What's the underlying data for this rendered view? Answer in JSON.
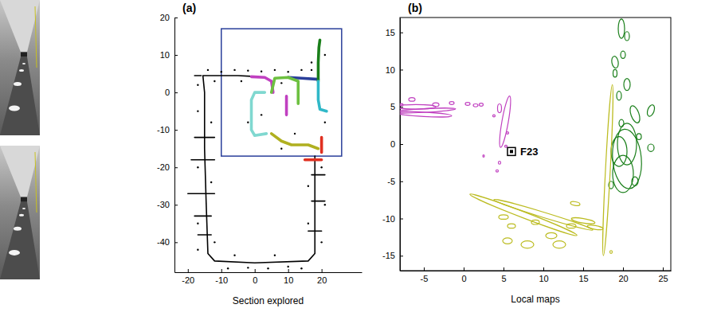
{
  "chart_data": [
    {
      "type": "line",
      "title": "(a)",
      "x_label": "Section explored",
      "xlim": [
        -24,
        32
      ],
      "xticks": [
        -20,
        -10,
        0,
        10,
        20
      ],
      "ylim": [
        -48,
        20
      ],
      "yticks": [
        -40,
        -30,
        -20,
        -10,
        0,
        10,
        20
      ],
      "region": {
        "x": [
          -10,
          26
        ],
        "y": [
          -17,
          17
        ],
        "color": "#2a3f9a"
      },
      "series": [
        {
          "color": "#000000",
          "line_style": "solid",
          "x": [
            18,
            18,
            18,
            16,
            0,
            -12,
            -14,
            -14.5,
            -15,
            -15,
            -15.5,
            -5,
            -1,
            null,
            -18,
            -12,
            null,
            -19,
            -12,
            null,
            -20,
            -12,
            null,
            -18,
            -13,
            null,
            -17,
            -13,
            null,
            17,
            21,
            null,
            17,
            21,
            null,
            16,
            20,
            null,
            -18,
            -16
          ],
          "y": [
            -17,
            -30,
            -43,
            -45,
            -45.5,
            -45,
            -43,
            -30,
            -15,
            0,
            4.5,
            4.5,
            4.3,
            null,
            -12,
            -12,
            null,
            -18,
            -18,
            null,
            -27,
            -27,
            null,
            -33,
            -33,
            null,
            -38,
            -38,
            null,
            -22,
            -22,
            null,
            -29,
            -29,
            null,
            -37,
            -37,
            null,
            4.5,
            4.5
          ]
        },
        {
          "color": "#000000",
          "marker": "dot",
          "line_style": "none",
          "x": [
            -14,
            -10,
            -6,
            -2,
            2,
            6,
            10,
            14,
            17,
            -17,
            -13,
            -17,
            -13,
            -17,
            -12,
            -17,
            -8,
            -2,
            4,
            10,
            14,
            -6,
            6,
            20,
            16,
            21,
            20,
            16,
            21,
            17,
            21,
            12,
            8,
            2,
            -2,
            -12,
            -4,
            8,
            -17,
            20
          ],
          "y": [
            6,
            5.5,
            6,
            5.8,
            5.6,
            6,
            5.5,
            6,
            6,
            -5,
            -8,
            -20,
            -24,
            -35,
            -40,
            -42,
            -47,
            -46.8,
            -47,
            -46.5,
            -47,
            -43.5,
            -43.5,
            -40,
            -35,
            -30,
            -20,
            -25,
            10,
            8,
            -8,
            -11,
            -15,
            -6,
            -8,
            3,
            3,
            2.5,
            2,
            -12
          ]
        },
        {
          "color": "#2a3f9a",
          "line_style": "solid",
          "x": [
            10,
            14,
            19
          ],
          "y": [
            4,
            3.8,
            3.5
          ]
        },
        {
          "color": "#1a7f1a",
          "line_style": "solid",
          "x": [
            19,
            19,
            19.2,
            19.5
          ],
          "y": [
            3,
            8,
            12,
            14
          ]
        },
        {
          "color": "#c040c0",
          "line_style": "solid",
          "x": [
            -1,
            3,
            5,
            5.5,
            null,
            9.5,
            9.5
          ],
          "y": [
            4.2,
            4,
            3,
            0,
            null,
            -1,
            -6
          ]
        },
        {
          "color": "#6dc040",
          "line_style": "solid",
          "x": [
            5,
            6,
            10,
            13,
            13
          ],
          "y": [
            0,
            3.8,
            4,
            3,
            -3
          ]
        },
        {
          "color": "#30b8c8",
          "line_style": "solid",
          "x": [
            19,
            19,
            19.5,
            21.5
          ],
          "y": [
            3,
            -2,
            -4.5,
            -5
          ]
        },
        {
          "color": "#80d8d0",
          "line_style": "solid",
          "x": [
            3,
            0,
            -1,
            -1,
            0,
            3.5
          ],
          "y": [
            0,
            0,
            -2,
            -10,
            -11.5,
            -11
          ]
        },
        {
          "color": "#b0b020",
          "line_style": "solid",
          "x": [
            5,
            8,
            11,
            16,
            19
          ],
          "y": [
            -11,
            -13,
            -14,
            -14,
            -15
          ]
        },
        {
          "color": "#e03020",
          "line_style": "solid",
          "x": [
            20,
            20,
            20,
            null,
            15,
            18,
            20
          ],
          "y": [
            -12,
            -14,
            -16,
            null,
            -18,
            -18,
            -18
          ]
        }
      ]
    },
    {
      "type": "scatter",
      "title": "(b)",
      "x_label": "Local maps",
      "xlim": [
        -8,
        26
      ],
      "xticks": [
        -5,
        0,
        5,
        10,
        15,
        20,
        25
      ],
      "ylim": [
        -17,
        17
      ],
      "yticks": [
        -15,
        -10,
        -5,
        0,
        5,
        10,
        15
      ],
      "annotations": [
        {
          "text": "F23",
          "x": 6,
          "y": -1,
          "marker": "square"
        }
      ],
      "series": [
        {
          "color": "#c040c0",
          "marker": "ellipse",
          "x": [
            -5,
            -5,
            -6,
            -3.5,
            -1.5,
            0.5,
            1.5,
            2.2,
            -6.5,
            -7.8,
            5.2,
            4.5,
            5.5,
            5.3,
            4.5,
            4.2,
            2.5,
            3.8
          ],
          "y": [
            4.5,
            4,
            5,
            5.3,
            5.5,
            5.4,
            5.2,
            5.3,
            6,
            5.3,
            3,
            4.8,
            1.5,
            -0.3,
            -2.5,
            -3.6,
            -1.6,
            3.8
          ],
          "rx": [
            4,
            3.5,
            2.5,
            0.4,
            0.3,
            0.3,
            0.3,
            0.25,
            0.4,
            0.2,
            0.4,
            0.25,
            0.15,
            0.15,
            0.15,
            0.15,
            0.1,
            0.15
          ],
          "ry": [
            0.25,
            0.3,
            0.3,
            0.25,
            0.2,
            0.2,
            0.2,
            0.2,
            0.25,
            0.15,
            3.5,
            0.6,
            0.15,
            0.15,
            0.2,
            0.15,
            0.15,
            0.15
          ],
          "angle": [
            3,
            -3,
            0,
            0,
            0,
            0,
            0,
            0,
            0,
            0,
            -10,
            0,
            0,
            0,
            0,
            0,
            0,
            0
          ]
        },
        {
          "color": "#1a7f1a",
          "marker": "ellipse",
          "x": [
            19.8,
            20.5,
            19,
            20,
            19,
            20.5,
            19.5,
            21.5,
            23.5,
            20.5,
            20.5,
            20,
            19.5,
            22,
            23.5,
            18.5,
            21.5,
            19.8
          ],
          "y": [
            15.5,
            14.5,
            11,
            12,
            9.5,
            8,
            6.5,
            4,
            4.5,
            0,
            -2,
            -4,
            -1,
            1,
            -0.5,
            -5.5,
            -5,
            2.8
          ],
          "rx": [
            0.4,
            0.3,
            0.4,
            0.3,
            0.25,
            0.4,
            0.3,
            0.5,
            0.4,
            1.2,
            1.8,
            1.3,
            1,
            0.3,
            0.4,
            0.3,
            0.4,
            0.3
          ],
          "ry": [
            1.3,
            0.6,
            0.8,
            0.5,
            0.5,
            0.8,
            0.6,
            1.2,
            0.8,
            2.8,
            4,
            2.5,
            2,
            0.4,
            0.5,
            0.5,
            0.6,
            0.5
          ],
          "angle": [
            0,
            0,
            10,
            0,
            0,
            0,
            0,
            20,
            -20,
            0,
            5,
            0,
            0,
            0,
            0,
            0,
            0,
            0
          ]
        },
        {
          "color": "#bcbc22",
          "marker": "ellipse",
          "x": [
            7.5,
            10,
            18.1,
            5,
            6,
            5.5,
            8,
            11,
            9,
            12,
            13.5,
            15,
            16.5,
            18.5,
            14
          ],
          "y": [
            -9.5,
            -9.5,
            -3.5,
            -9.8,
            -11,
            -13,
            -13.5,
            -12.3,
            -10.5,
            -13.5,
            -11,
            -10.3,
            -11.2,
            -14.5,
            -8
          ],
          "rx": [
            7.2,
            6.5,
            0.3,
            0.6,
            0.5,
            0.6,
            0.8,
            0.7,
            0.5,
            0.8,
            0.6,
            1.5,
            1,
            0.15,
            0.6
          ],
          "ry": [
            0.4,
            0.35,
            11.5,
            0.3,
            0.3,
            0.4,
            0.5,
            0.4,
            0.3,
            0.5,
            0.3,
            0.3,
            0.25,
            0.2,
            0.25
          ],
          "angle": [
            -21,
            -17,
            -3,
            0,
            0,
            0,
            0,
            0,
            0,
            0,
            0,
            -10,
            -10,
            0,
            -10
          ]
        }
      ]
    }
  ]
}
